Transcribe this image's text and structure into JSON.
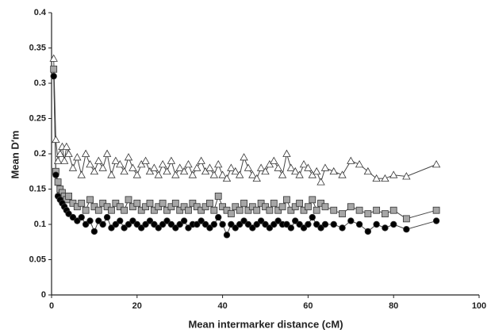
{
  "chart_data": {
    "type": "line",
    "xlabel": "Mean intermarker distance (cM)",
    "ylabel": "Mean D′m",
    "xlim": [
      0,
      100
    ],
    "xticks": [
      0,
      20,
      40,
      60,
      80,
      100
    ],
    "ylim": [
      0,
      0.4
    ],
    "yticks": [
      0,
      0.05,
      0.1,
      0.15,
      0.2,
      0.25,
      0.3,
      0.35,
      0.4
    ],
    "grid": false,
    "x": [
      0.5,
      1,
      1.5,
      2,
      2.5,
      3,
      3.5,
      4,
      5,
      6,
      7,
      8,
      9,
      10,
      11,
      12,
      13,
      14,
      15,
      16,
      17,
      18,
      19,
      20,
      21,
      22,
      23,
      24,
      25,
      26,
      27,
      28,
      29,
      30,
      31,
      32,
      33,
      34,
      35,
      36,
      37,
      38,
      39,
      40,
      41,
      42,
      43,
      44,
      45,
      46,
      47,
      48,
      49,
      50,
      51,
      52,
      53,
      54,
      55,
      56,
      57,
      58,
      59,
      60,
      61,
      62,
      63,
      64,
      66,
      68,
      70,
      72,
      74,
      76,
      78,
      80,
      83,
      90
    ],
    "series": [
      {
        "marker": "triangle",
        "color": "#ffffff",
        "values": [
          0.335,
          0.22,
          0.19,
          0.2,
          0.21,
          0.19,
          0.21,
          0.2,
          0.18,
          0.195,
          0.17,
          0.2,
          0.185,
          0.175,
          0.19,
          0.18,
          0.2,
          0.17,
          0.19,
          0.185,
          0.175,
          0.195,
          0.18,
          0.17,
          0.185,
          0.19,
          0.175,
          0.18,
          0.17,
          0.185,
          0.175,
          0.19,
          0.17,
          0.18,
          0.175,
          0.185,
          0.17,
          0.18,
          0.19,
          0.175,
          0.18,
          0.17,
          0.185,
          0.17,
          0.165,
          0.18,
          0.175,
          0.17,
          0.195,
          0.18,
          0.17,
          0.165,
          0.18,
          0.175,
          0.185,
          0.19,
          0.18,
          0.17,
          0.2,
          0.18,
          0.175,
          0.17,
          0.185,
          0.18,
          0.17,
          0.175,
          0.16,
          0.18,
          0.175,
          0.17,
          0.19,
          0.185,
          0.175,
          0.165,
          0.165,
          0.17,
          0.168,
          0.185
        ]
      },
      {
        "marker": "square",
        "color": "#a6a6a6",
        "values": [
          0.32,
          0.175,
          0.16,
          0.15,
          0.145,
          0.14,
          0.135,
          0.14,
          0.13,
          0.125,
          0.13,
          0.12,
          0.135,
          0.125,
          0.12,
          0.13,
          0.125,
          0.12,
          0.13,
          0.125,
          0.12,
          0.135,
          0.125,
          0.13,
          0.12,
          0.125,
          0.13,
          0.12,
          0.125,
          0.13,
          0.12,
          0.125,
          0.13,
          0.12,
          0.125,
          0.12,
          0.13,
          0.125,
          0.12,
          0.125,
          0.13,
          0.12,
          0.14,
          0.125,
          0.12,
          0.115,
          0.125,
          0.12,
          0.13,
          0.12,
          0.125,
          0.12,
          0.13,
          0.125,
          0.12,
          0.13,
          0.12,
          0.125,
          0.135,
          0.12,
          0.125,
          0.13,
          0.12,
          0.125,
          0.135,
          0.12,
          0.13,
          0.125,
          0.12,
          0.115,
          0.125,
          0.12,
          0.115,
          0.12,
          0.115,
          0.12,
          0.108,
          0.12
        ]
      },
      {
        "marker": "circle",
        "color": "#000000",
        "values": [
          0.31,
          0.17,
          0.14,
          0.135,
          0.13,
          0.125,
          0.12,
          0.115,
          0.11,
          0.105,
          0.11,
          0.1,
          0.105,
          0.09,
          0.105,
          0.1,
          0.11,
          0.095,
          0.1,
          0.105,
          0.095,
          0.1,
          0.105,
          0.1,
          0.095,
          0.1,
          0.105,
          0.1,
          0.095,
          0.1,
          0.105,
          0.1,
          0.095,
          0.1,
          0.105,
          0.095,
          0.1,
          0.1,
          0.105,
          0.1,
          0.095,
          0.1,
          0.11,
          0.1,
          0.085,
          0.1,
          0.095,
          0.1,
          0.105,
          0.1,
          0.095,
          0.1,
          0.105,
          0.1,
          0.095,
          0.1,
          0.105,
          0.1,
          0.1,
          0.095,
          0.105,
          0.1,
          0.095,
          0.1,
          0.11,
          0.1,
          0.095,
          0.1,
          0.1,
          0.095,
          0.105,
          0.1,
          0.09,
          0.1,
          0.095,
          0.1,
          0.093,
          0.105
        ]
      }
    ]
  }
}
